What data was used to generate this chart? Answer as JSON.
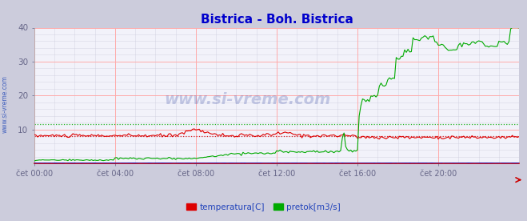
{
  "title": "Bistrica - Boh. Bistrica",
  "title_color": "#0000cc",
  "title_fontsize": 11,
  "bg_color": "#d0d0e0",
  "plot_bg_color": "#f4f4f8",
  "watermark_text": "www.si-vreme.com",
  "ylim": [
    0,
    40
  ],
  "yticks": [
    10,
    20,
    30,
    40
  ],
  "xlim": [
    0,
    288
  ],
  "xtick_labels": [
    "čet 00:00",
    "čet 04:00",
    "čet 08:00",
    "čet 12:00",
    "čet 16:00",
    "čet 20:00"
  ],
  "xtick_positions": [
    0,
    48,
    96,
    144,
    192,
    240
  ],
  "grid_color_major": "#ffaaaa",
  "grid_color_minor": "#d8d8e8",
  "temp_color": "#dd0000",
  "flow_color": "#00aa00",
  "height_color": "#0000bb",
  "temp_avg": 8.1,
  "flow_avg": 11.5,
  "legend_labels": [
    "temperatura[C]",
    "pretok[m3/s]"
  ],
  "legend_colors": [
    "#dd0000",
    "#00aa00"
  ],
  "sidebar_text": "www.si-vreme.com",
  "sidebar_color": "#3355bb"
}
